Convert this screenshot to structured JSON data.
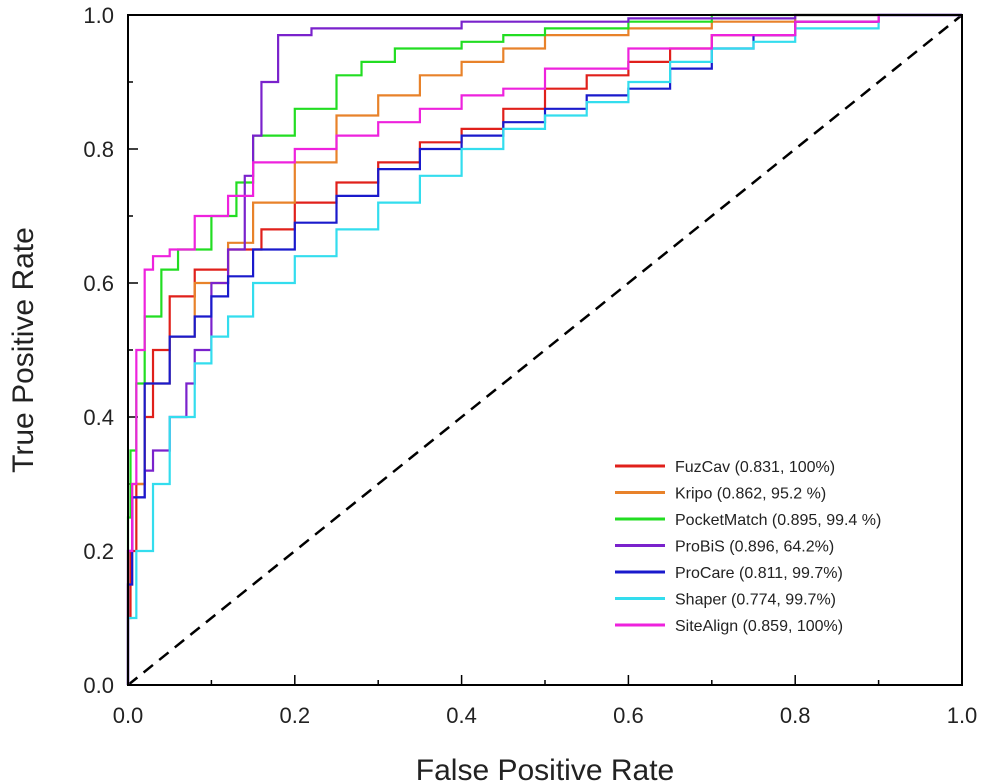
{
  "chart_data": {
    "type": "line",
    "title": "",
    "xlabel": "False Positive Rate",
    "ylabel": "True Positive Rate",
    "xlim": [
      0,
      1
    ],
    "ylim": [
      0,
      1
    ],
    "xticks": [
      "0.0",
      "0.2",
      "0.4",
      "0.6",
      "0.8",
      "1.0"
    ],
    "yticks": [
      "0.0",
      "0.2",
      "0.4",
      "0.6",
      "0.8",
      "1.0"
    ],
    "legend_position": "bottom-right",
    "diagonal": {
      "name": "random",
      "color": "#000000",
      "style": "dashed",
      "points": [
        [
          0,
          0
        ],
        [
          1,
          1
        ]
      ]
    },
    "series": [
      {
        "name": "FuzCav (0.831, 100%)",
        "color": "#e0201b",
        "points": [
          [
            0,
            0
          ],
          [
            0.003,
            0.1
          ],
          [
            0.01,
            0.2
          ],
          [
            0.02,
            0.3
          ],
          [
            0.03,
            0.4
          ],
          [
            0.05,
            0.5
          ],
          [
            0.08,
            0.58
          ],
          [
            0.12,
            0.62
          ],
          [
            0.16,
            0.65
          ],
          [
            0.2,
            0.68
          ],
          [
            0.25,
            0.72
          ],
          [
            0.3,
            0.75
          ],
          [
            0.35,
            0.78
          ],
          [
            0.4,
            0.81
          ],
          [
            0.45,
            0.83
          ],
          [
            0.5,
            0.86
          ],
          [
            0.55,
            0.89
          ],
          [
            0.6,
            0.91
          ],
          [
            0.65,
            0.93
          ],
          [
            0.7,
            0.95
          ],
          [
            0.8,
            0.97
          ],
          [
            0.9,
            0.99
          ],
          [
            1,
            1
          ]
        ]
      },
      {
        "name": "Kripo (0.862, 95.2 %)",
        "color": "#e8822a",
        "points": [
          [
            0,
            0
          ],
          [
            0.005,
            0.15
          ],
          [
            0.02,
            0.3
          ],
          [
            0.05,
            0.45
          ],
          [
            0.08,
            0.52
          ],
          [
            0.12,
            0.6
          ],
          [
            0.15,
            0.66
          ],
          [
            0.2,
            0.72
          ],
          [
            0.25,
            0.78
          ],
          [
            0.3,
            0.85
          ],
          [
            0.35,
            0.88
          ],
          [
            0.4,
            0.91
          ],
          [
            0.45,
            0.93
          ],
          [
            0.5,
            0.95
          ],
          [
            0.6,
            0.97
          ],
          [
            0.7,
            0.98
          ],
          [
            0.8,
            0.99
          ],
          [
            1,
            1
          ]
        ]
      },
      {
        "name": "PocketMatch (0.895, 99.4 %)",
        "color": "#22dd22",
        "points": [
          [
            0,
            0
          ],
          [
            0.003,
            0.25
          ],
          [
            0.01,
            0.35
          ],
          [
            0.02,
            0.45
          ],
          [
            0.04,
            0.55
          ],
          [
            0.06,
            0.62
          ],
          [
            0.1,
            0.65
          ],
          [
            0.13,
            0.7
          ],
          [
            0.15,
            0.75
          ],
          [
            0.2,
            0.82
          ],
          [
            0.25,
            0.86
          ],
          [
            0.28,
            0.91
          ],
          [
            0.32,
            0.93
          ],
          [
            0.4,
            0.95
          ],
          [
            0.45,
            0.96
          ],
          [
            0.5,
            0.97
          ],
          [
            0.6,
            0.98
          ],
          [
            0.7,
            0.99
          ],
          [
            1,
            1
          ]
        ]
      },
      {
        "name": "ProBiS (0.896, 64.2%)",
        "color": "#7a22cc",
        "points": [
          [
            0,
            0
          ],
          [
            0.005,
            0.2
          ],
          [
            0.02,
            0.28
          ],
          [
            0.03,
            0.32
          ],
          [
            0.05,
            0.35
          ],
          [
            0.07,
            0.4
          ],
          [
            0.08,
            0.45
          ],
          [
            0.1,
            0.5
          ],
          [
            0.12,
            0.6
          ],
          [
            0.14,
            0.65
          ],
          [
            0.15,
            0.76
          ],
          [
            0.16,
            0.82
          ],
          [
            0.18,
            0.9
          ],
          [
            0.2,
            0.97
          ],
          [
            0.22,
            0.97
          ],
          [
            0.25,
            0.98
          ],
          [
            0.4,
            0.98
          ],
          [
            0.6,
            0.99
          ],
          [
            0.8,
            0.995
          ],
          [
            1,
            1
          ]
        ]
      },
      {
        "name": "ProCare (0.811, 99.7%)",
        "color": "#1a1acc",
        "points": [
          [
            0,
            0
          ],
          [
            0.005,
            0.15
          ],
          [
            0.02,
            0.28
          ],
          [
            0.05,
            0.45
          ],
          [
            0.08,
            0.52
          ],
          [
            0.1,
            0.55
          ],
          [
            0.12,
            0.58
          ],
          [
            0.15,
            0.61
          ],
          [
            0.2,
            0.65
          ],
          [
            0.25,
            0.69
          ],
          [
            0.3,
            0.73
          ],
          [
            0.35,
            0.77
          ],
          [
            0.4,
            0.8
          ],
          [
            0.45,
            0.82
          ],
          [
            0.5,
            0.84
          ],
          [
            0.55,
            0.86
          ],
          [
            0.6,
            0.88
          ],
          [
            0.65,
            0.89
          ],
          [
            0.7,
            0.92
          ],
          [
            0.75,
            0.95
          ],
          [
            0.8,
            0.97
          ],
          [
            0.9,
            0.99
          ],
          [
            1,
            1
          ]
        ]
      },
      {
        "name": "Shaper (0.774, 99.7%)",
        "color": "#33ddee",
        "points": [
          [
            0,
            0
          ],
          [
            0.01,
            0.1
          ],
          [
            0.03,
            0.2
          ],
          [
            0.05,
            0.3
          ],
          [
            0.08,
            0.4
          ],
          [
            0.1,
            0.48
          ],
          [
            0.12,
            0.52
          ],
          [
            0.15,
            0.55
          ],
          [
            0.2,
            0.6
          ],
          [
            0.25,
            0.64
          ],
          [
            0.3,
            0.68
          ],
          [
            0.35,
            0.72
          ],
          [
            0.4,
            0.76
          ],
          [
            0.45,
            0.8
          ],
          [
            0.5,
            0.83
          ],
          [
            0.55,
            0.85
          ],
          [
            0.6,
            0.87
          ],
          [
            0.65,
            0.9
          ],
          [
            0.7,
            0.93
          ],
          [
            0.75,
            0.95
          ],
          [
            0.8,
            0.96
          ],
          [
            0.9,
            0.98
          ],
          [
            1,
            1
          ]
        ]
      },
      {
        "name": "SiteAlign (0.859, 100%)",
        "color": "#ee22dd",
        "points": [
          [
            0,
            0
          ],
          [
            0.005,
            0.2
          ],
          [
            0.01,
            0.3
          ],
          [
            0.02,
            0.5
          ],
          [
            0.03,
            0.62
          ],
          [
            0.05,
            0.64
          ],
          [
            0.08,
            0.65
          ],
          [
            0.12,
            0.7
          ],
          [
            0.15,
            0.73
          ],
          [
            0.2,
            0.78
          ],
          [
            0.25,
            0.8
          ],
          [
            0.3,
            0.82
          ],
          [
            0.35,
            0.84
          ],
          [
            0.4,
            0.86
          ],
          [
            0.45,
            0.88
          ],
          [
            0.5,
            0.89
          ],
          [
            0.6,
            0.92
          ],
          [
            0.7,
            0.95
          ],
          [
            0.8,
            0.97
          ],
          [
            0.9,
            0.99
          ],
          [
            1,
            1
          ]
        ]
      }
    ]
  }
}
